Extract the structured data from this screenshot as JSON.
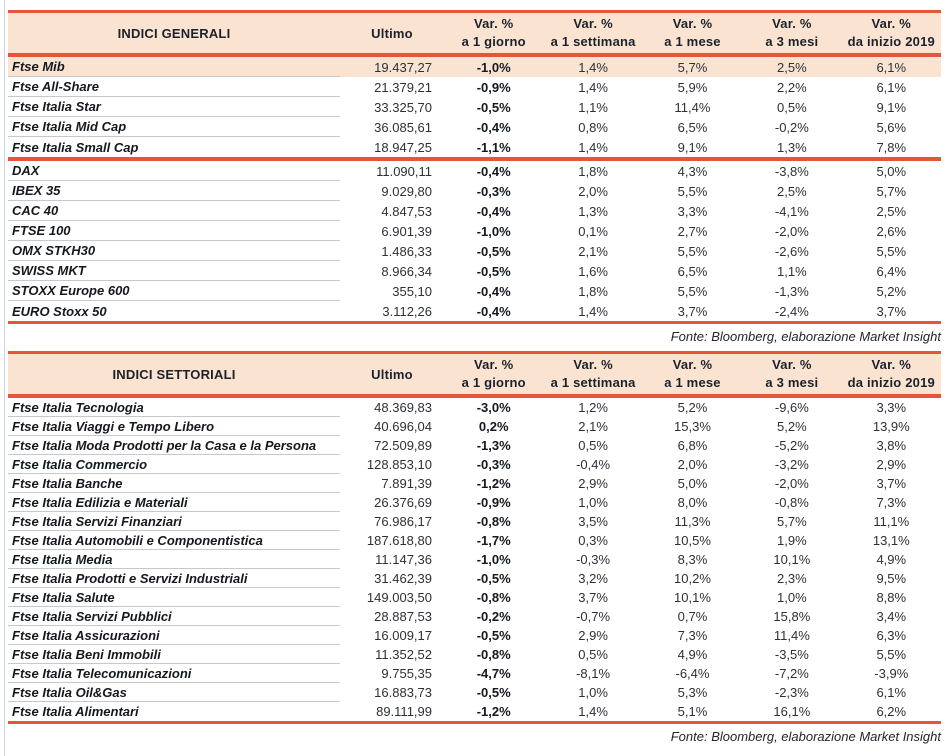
{
  "colors": {
    "accent_red": "#E8533B",
    "header_bg": "#FBE3D2",
    "highlight_row_bg": "#FBE3D2",
    "row_rule_gray": "#C6C9CC",
    "page_edge_line": "#CCD6E6"
  },
  "tables": [
    {
      "title": "INDICI GENERALI",
      "ultimo_label": "Ultimo",
      "var_headers": [
        {
          "line1": "Var. %",
          "line2": "a 1 giorno"
        },
        {
          "line1": "Var. %",
          "line2": "a 1 settimana"
        },
        {
          "line1": "Var. %",
          "line2": "a 1 mese"
        },
        {
          "line1": "Var. %",
          "line2": "a 3 mesi"
        },
        {
          "line1": "Var. %",
          "line2": "da inizio 2019"
        }
      ],
      "source": "Fonte: Bloomberg, elaborazione Market Insight",
      "rows": [
        {
          "name": "Ftse Mib",
          "ultimo": "19.437,27",
          "vars": [
            "-1,0%",
            "1,4%",
            "5,7%",
            "2,5%",
            "6,1%"
          ],
          "highlight": true
        },
        {
          "name": "Ftse All-Share",
          "ultimo": "21.379,21",
          "vars": [
            "-0,9%",
            "1,4%",
            "5,9%",
            "2,2%",
            "6,1%"
          ]
        },
        {
          "name": "Ftse Italia Star",
          "ultimo": "33.325,70",
          "vars": [
            "-0,5%",
            "1,1%",
            "11,4%",
            "0,5%",
            "9,1%"
          ]
        },
        {
          "name": "Ftse Italia Mid Cap",
          "ultimo": "36.085,61",
          "vars": [
            "-0,4%",
            "0,8%",
            "6,5%",
            "-0,2%",
            "5,6%"
          ]
        },
        {
          "name": "Ftse Italia Small Cap",
          "ultimo": "18.947,25",
          "vars": [
            "-1,1%",
            "1,4%",
            "9,1%",
            "1,3%",
            "7,8%"
          ],
          "break_after": true
        },
        {
          "name": "DAX",
          "ultimo": "11.090,11",
          "vars": [
            "-0,4%",
            "1,8%",
            "4,3%",
            "-3,8%",
            "5,0%"
          ]
        },
        {
          "name": "IBEX 35",
          "ultimo": "9.029,80",
          "vars": [
            "-0,3%",
            "2,0%",
            "5,5%",
            "2,5%",
            "5,7%"
          ]
        },
        {
          "name": "CAC 40",
          "ultimo": "4.847,53",
          "vars": [
            "-0,4%",
            "1,3%",
            "3,3%",
            "-4,1%",
            "2,5%"
          ]
        },
        {
          "name": "FTSE 100",
          "ultimo": "6.901,39",
          "vars": [
            "-1,0%",
            "0,1%",
            "2,7%",
            "-2,0%",
            "2,6%"
          ]
        },
        {
          "name": "OMX STKH30",
          "ultimo": "1.486,33",
          "vars": [
            "-0,5%",
            "2,1%",
            "5,5%",
            "-2,6%",
            "5,5%"
          ]
        },
        {
          "name": "SWISS MKT",
          "ultimo": "8.966,34",
          "vars": [
            "-0,5%",
            "1,6%",
            "6,5%",
            "1,1%",
            "6,4%"
          ]
        },
        {
          "name": "STOXX Europe 600",
          "ultimo": "355,10",
          "vars": [
            "-0,4%",
            "1,8%",
            "5,5%",
            "-1,3%",
            "5,2%"
          ]
        },
        {
          "name": "EURO Stoxx 50",
          "ultimo": "3.112,26",
          "vars": [
            "-0,4%",
            "1,4%",
            "3,7%",
            "-2,4%",
            "3,7%"
          ]
        }
      ]
    },
    {
      "title": "INDICI SETTORIALI",
      "ultimo_label": "Ultimo",
      "var_headers": [
        {
          "line1": "Var. %",
          "line2": "a 1 giorno"
        },
        {
          "line1": "Var. %",
          "line2": "a 1 settimana"
        },
        {
          "line1": "Var. %",
          "line2": "a 1 mese"
        },
        {
          "line1": "Var. %",
          "line2": "a 3 mesi"
        },
        {
          "line1": "Var. %",
          "line2": "da inizio 2019"
        }
      ],
      "source": "Fonte: Bloomberg, elaborazione Market Insight",
      "rows": [
        {
          "name": "Ftse Italia Tecnologia",
          "ultimo": "48.369,83",
          "vars": [
            "-3,0%",
            "1,2%",
            "5,2%",
            "-9,6%",
            "3,3%"
          ]
        },
        {
          "name": "Ftse Italia Viaggi e Tempo Libero",
          "ultimo": "40.696,04",
          "vars": [
            "0,2%",
            "2,1%",
            "15,3%",
            "5,2%",
            "13,9%"
          ]
        },
        {
          "name": "Ftse Italia Moda Prodotti per la Casa e la Persona",
          "ultimo": "72.509,89",
          "vars": [
            "-1,3%",
            "0,5%",
            "6,8%",
            "-5,2%",
            "3,8%"
          ]
        },
        {
          "name": "Ftse Italia Commercio",
          "ultimo": "128.853,10",
          "vars": [
            "-0,3%",
            "-0,4%",
            "2,0%",
            "-3,2%",
            "2,9%"
          ]
        },
        {
          "name": "Ftse Italia Banche",
          "ultimo": "7.891,39",
          "vars": [
            "-1,2%",
            "2,9%",
            "5,0%",
            "-2,0%",
            "3,7%"
          ]
        },
        {
          "name": "Ftse Italia Edilizia e Materiali",
          "ultimo": "26.376,69",
          "vars": [
            "-0,9%",
            "1,0%",
            "8,0%",
            "-0,8%",
            "7,3%"
          ]
        },
        {
          "name": "Ftse Italia Servizi Finanziari",
          "ultimo": "76.986,17",
          "vars": [
            "-0,8%",
            "3,5%",
            "11,3%",
            "5,7%",
            "11,1%"
          ]
        },
        {
          "name": "Ftse Italia Automobili e Componentistica",
          "ultimo": "187.618,80",
          "vars": [
            "-1,7%",
            "0,3%",
            "10,5%",
            "1,9%",
            "13,1%"
          ]
        },
        {
          "name": "Ftse Italia Media",
          "ultimo": "11.147,36",
          "vars": [
            "-1,0%",
            "-0,3%",
            "8,3%",
            "10,1%",
            "4,9%"
          ]
        },
        {
          "name": "Ftse Italia Prodotti e Servizi Industriali",
          "ultimo": "31.462,39",
          "vars": [
            "-0,5%",
            "3,2%",
            "10,2%",
            "2,3%",
            "9,5%"
          ]
        },
        {
          "name": "Ftse Italia Salute",
          "ultimo": "149.003,50",
          "vars": [
            "-0,8%",
            "3,7%",
            "10,1%",
            "1,0%",
            "8,8%"
          ]
        },
        {
          "name": "Ftse Italia Servizi Pubblici",
          "ultimo": "28.887,53",
          "vars": [
            "-0,2%",
            "-0,7%",
            "0,7%",
            "15,8%",
            "3,4%"
          ]
        },
        {
          "name": "Ftse Italia Assicurazioni",
          "ultimo": "16.009,17",
          "vars": [
            "-0,5%",
            "2,9%",
            "7,3%",
            "11,4%",
            "6,3%"
          ]
        },
        {
          "name": "Ftse Italia Beni Immobili",
          "ultimo": "11.352,52",
          "vars": [
            "-0,8%",
            "0,5%",
            "4,9%",
            "-3,5%",
            "5,5%"
          ]
        },
        {
          "name": "Ftse Italia Telecomunicazioni",
          "ultimo": "9.755,35",
          "vars": [
            "-4,7%",
            "-8,1%",
            "-6,4%",
            "-7,2%",
            "-3,9%"
          ]
        },
        {
          "name": "Ftse Italia Oil&Gas",
          "ultimo": "16.883,73",
          "vars": [
            "-0,5%",
            "1,0%",
            "5,3%",
            "-2,3%",
            "6,1%"
          ]
        },
        {
          "name": "Ftse Italia Alimentari",
          "ultimo": "89.111,99",
          "vars": [
            "-1,2%",
            "1,4%",
            "5,1%",
            "16,1%",
            "6,2%"
          ]
        }
      ]
    }
  ]
}
